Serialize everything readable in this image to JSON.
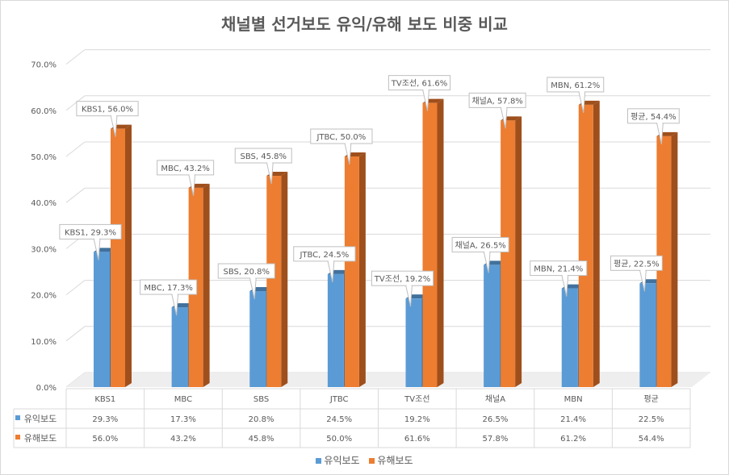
{
  "chart_data": {
    "type": "bar",
    "title": "채널별 선거보도 유익/유해 보도 비중 비교",
    "categories": [
      "KBS1",
      "MBC",
      "SBS",
      "JTBC",
      "TV조선",
      "채널A",
      "MBN",
      "평균"
    ],
    "series": [
      {
        "name": "유익보도",
        "values": [
          29.3,
          17.3,
          20.8,
          24.5,
          19.2,
          26.5,
          21.4,
          22.5
        ],
        "color": "#5b9bd5"
      },
      {
        "name": "유해보도",
        "values": [
          56.0,
          43.2,
          45.8,
          50.0,
          61.6,
          57.8,
          61.2,
          54.4
        ],
        "color": "#ed7d31"
      }
    ],
    "yticks": [
      "0.0%",
      "10.0%",
      "20.0%",
      "30.0%",
      "40.0%",
      "50.0%",
      "60.0%",
      "70.0%"
    ],
    "ylim": [
      0,
      70
    ],
    "xlabel": "",
    "ylabel": "",
    "grid": true,
    "legend": "bottom",
    "data_table": true
  }
}
